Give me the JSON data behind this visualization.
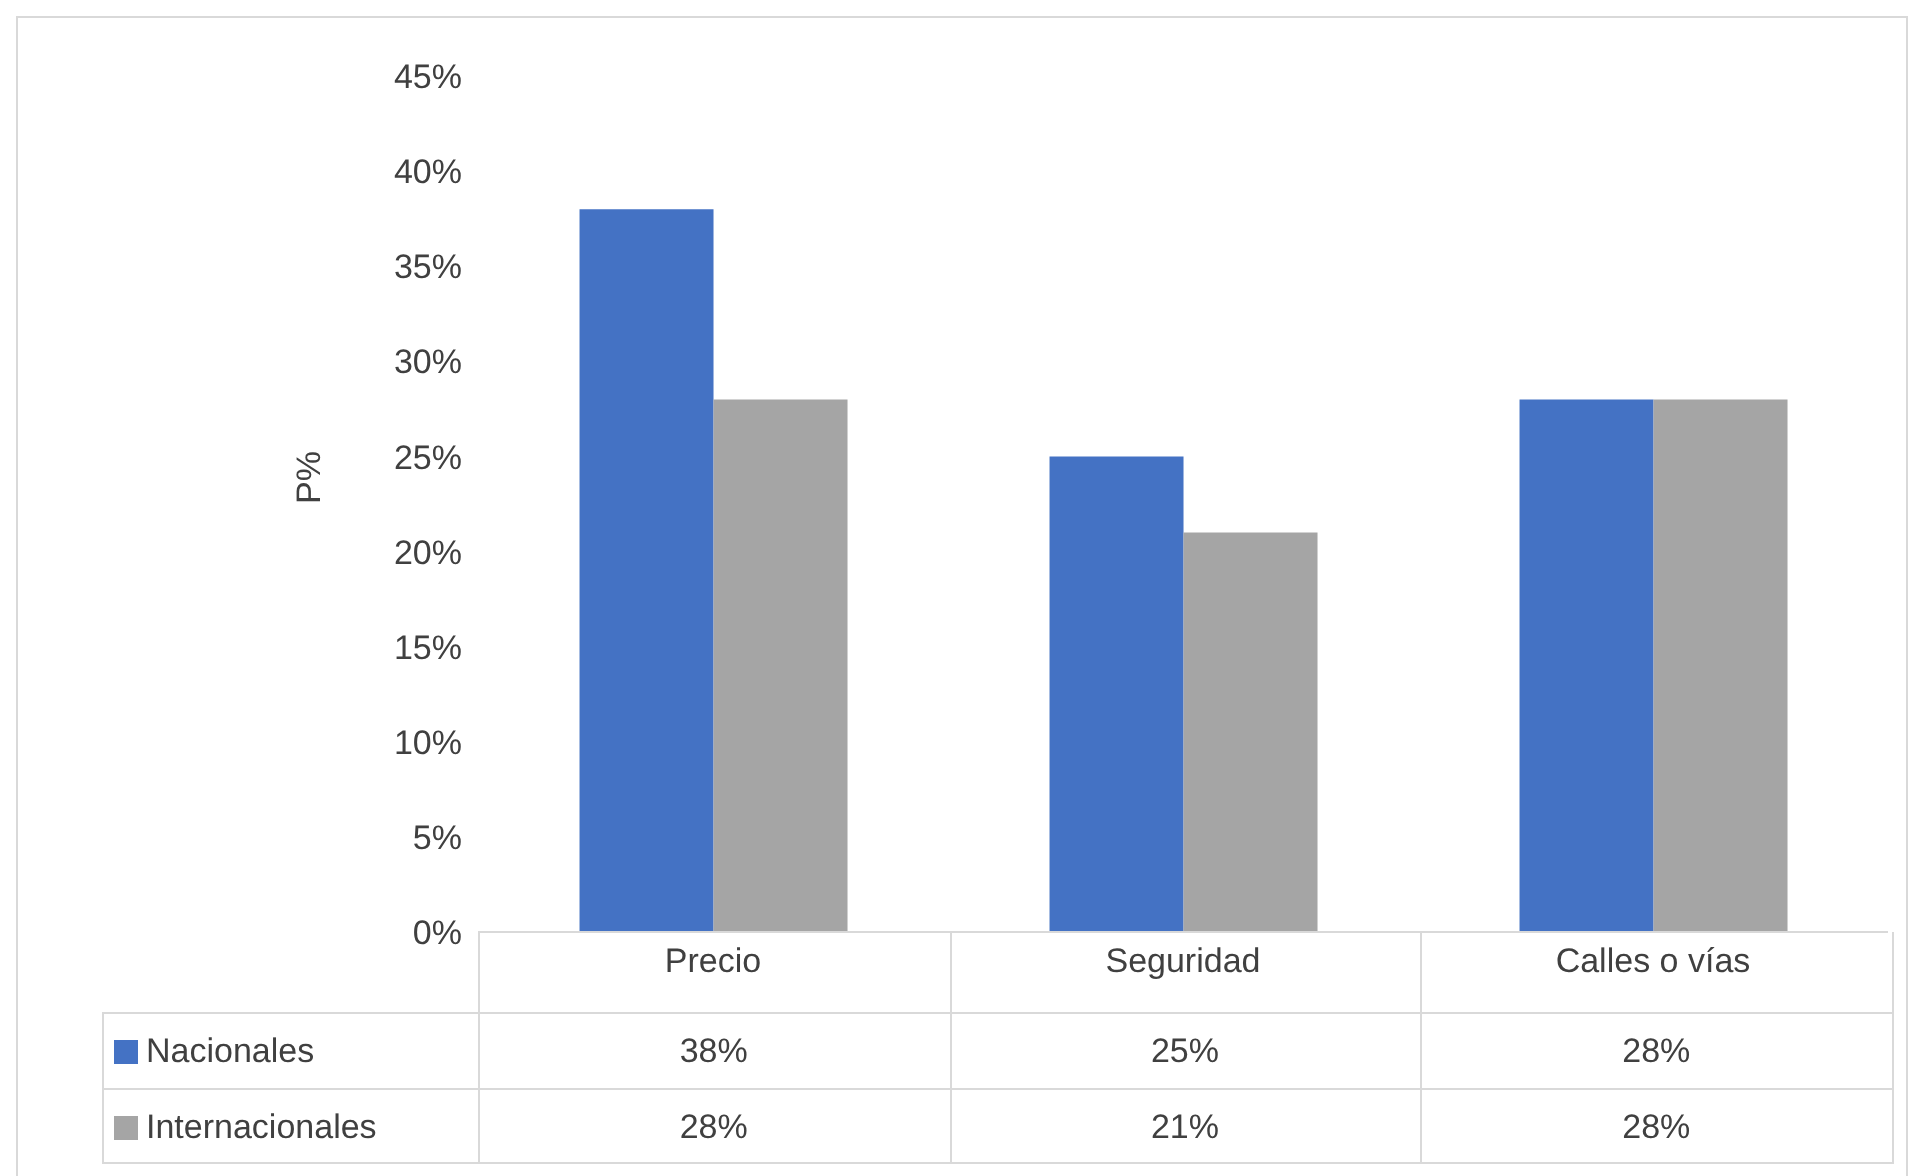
{
  "chart_data": {
    "type": "bar",
    "ylabel": "P%",
    "categories": [
      "Precio",
      "Seguridad",
      "Calles o vías"
    ],
    "series": [
      {
        "name": "Nacionales",
        "color": "#4472c4",
        "values": [
          38,
          25,
          28
        ],
        "value_labels": [
          "38%",
          "25%",
          "28%"
        ]
      },
      {
        "name": "Internacionales",
        "color": "#a5a5a5",
        "values": [
          28,
          21,
          28
        ],
        "value_labels": [
          "28%",
          "21%",
          "28%"
        ]
      }
    ],
    "ylim": [
      0,
      45
    ],
    "yticks": [
      {
        "value": 0,
        "label": "0%"
      },
      {
        "value": 5,
        "label": "5%"
      },
      {
        "value": 10,
        "label": "10%"
      },
      {
        "value": 15,
        "label": "15%"
      },
      {
        "value": 20,
        "label": "20%"
      },
      {
        "value": 25,
        "label": "25%"
      },
      {
        "value": 30,
        "label": "30%"
      },
      {
        "value": 35,
        "label": "35%"
      },
      {
        "value": 40,
        "label": "40%"
      },
      {
        "value": 45,
        "label": "45%"
      }
    ],
    "legend": "bottom"
  }
}
